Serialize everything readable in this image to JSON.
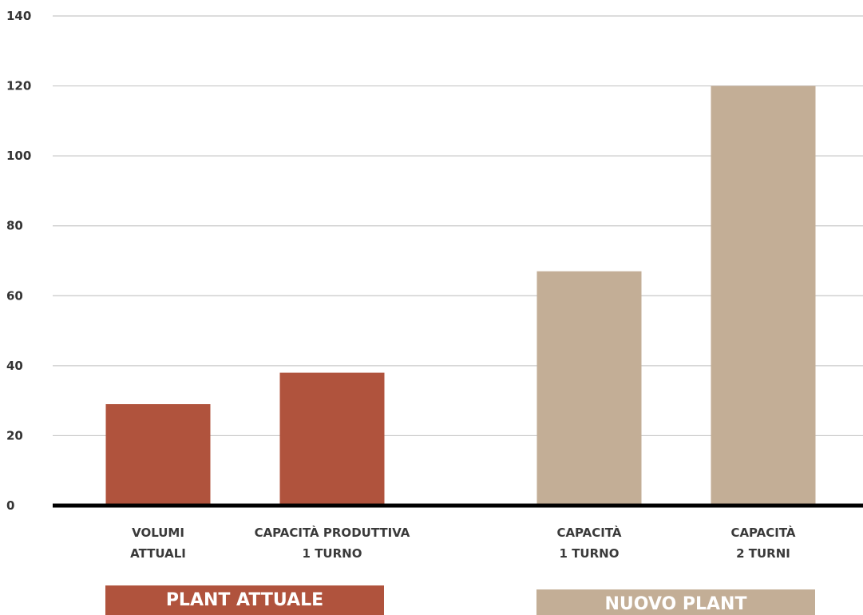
{
  "chart_data": {
    "type": "bar",
    "categories": [
      [
        "VOLUMI",
        "ATTUALI"
      ],
      [
        "CAPACITÀ PRODUTTIVA",
        "1 TURNO"
      ],
      [
        "CAPACITÀ",
        "1 TURNO"
      ],
      [
        "CAPACITÀ",
        "2 TURNI"
      ]
    ],
    "values": [
      29,
      38,
      67,
      120
    ],
    "bar_colors": [
      "#b0533d",
      "#b0533d",
      "#c3ae96",
      "#c3ae96"
    ],
    "ylim": [
      0,
      140
    ],
    "yticks": [
      0,
      20,
      40,
      60,
      80,
      100,
      120,
      140
    ],
    "grid": true,
    "groups": [
      {
        "label": "PLANT ATTUALE",
        "color": "#b0533d",
        "categories": [
          0,
          1
        ]
      },
      {
        "label": "NUOVO PLANT",
        "color": "#c3ae96",
        "categories": [
          2,
          3
        ]
      }
    ]
  }
}
